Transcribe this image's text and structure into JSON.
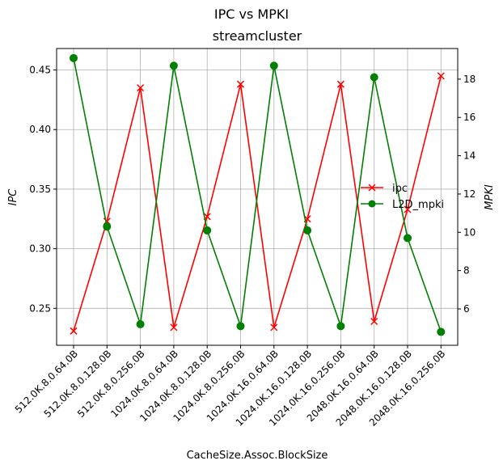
{
  "chart_data": {
    "type": "line",
    "suptitle": "IPC vs MPKI",
    "title": "streamcluster",
    "xlabel": "CacheSize.Assoc.BlockSize",
    "ylabel_left": "IPC",
    "ylabel_right": "MPKI",
    "categories": [
      "512.0K.8.0.64.0B",
      "512.0K.8.0.128.0B",
      "512.0K.8.0.256.0B",
      "1024.0K.8.0.64.0B",
      "1024.0K.8.0.128.0B",
      "1024.0K.8.0.256.0B",
      "1024.0K.16.0.64.0B",
      "1024.0K.16.0.128.0B",
      "1024.0K.16.0.256.0B",
      "2048.0K.16.0.64.0B",
      "2048.0K.16.0.128.0B",
      "2048.0K.16.0.256.0B"
    ],
    "ylim_left": [
      0.219,
      0.468
    ],
    "yticks_left": [
      "0.25",
      "0.30",
      "0.35",
      "0.40",
      "0.45"
    ],
    "ylim_right": [
      4.1,
      19.6
    ],
    "yticks_right": [
      "6",
      "8",
      "10",
      "12",
      "14",
      "16",
      "18"
    ],
    "grid": true,
    "legend_position": "center-right",
    "series": [
      {
        "name": "ipc",
        "axis": "left",
        "color": "#ff0000",
        "marker": "x",
        "values": [
          0.231,
          0.323,
          0.435,
          0.234,
          0.327,
          0.438,
          0.234,
          0.325,
          0.438,
          0.239,
          0.333,
          0.445
        ]
      },
      {
        "name": "L2D_mpki",
        "axis": "right",
        "color": "#008000",
        "marker": "o",
        "values": [
          19.1,
          10.3,
          5.2,
          18.7,
          10.1,
          5.1,
          18.7,
          10.1,
          5.1,
          18.1,
          9.7,
          4.8
        ]
      }
    ]
  }
}
